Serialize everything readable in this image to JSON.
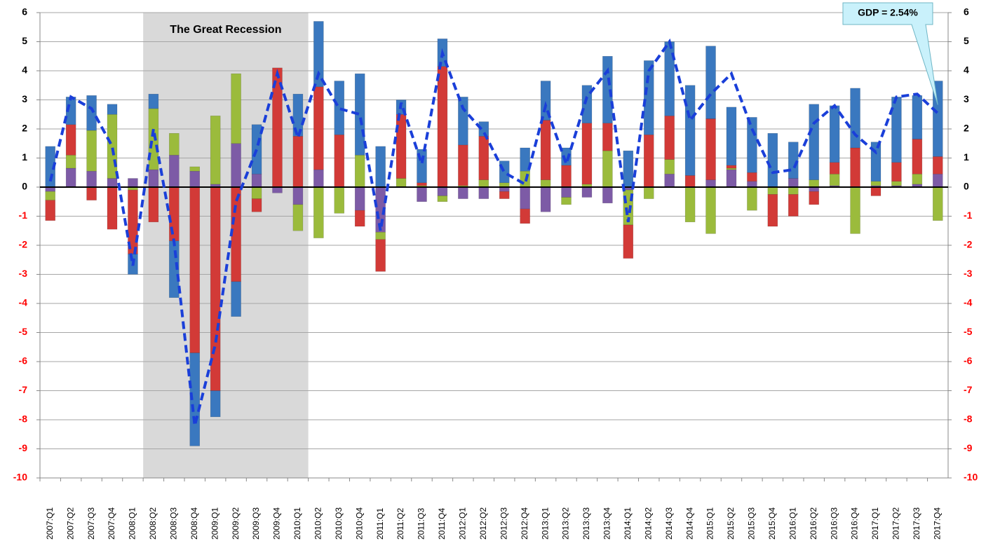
{
  "chart_data": {
    "type": "stacked-bar-line",
    "categories": [
      "2007:Q1",
      "2007:Q2",
      "2007:Q3",
      "2007:Q4",
      "2008:Q1",
      "2008:Q2",
      "2008:Q3",
      "2008:Q4",
      "2009:Q1",
      "2009:Q2",
      "2009:Q3",
      "2009:Q4",
      "2010:Q1",
      "2010:Q2",
      "2010:Q3",
      "2010:Q4",
      "2011:Q1",
      "2011:Q2",
      "2011:Q3",
      "2011:Q4",
      "2012:Q1",
      "2012:Q2",
      "2012:Q3",
      "2012:Q4",
      "2013:Q1",
      "2013:Q2",
      "2013:Q3",
      "2013:Q4",
      "2014:Q1",
      "2014:Q2",
      "2014:Q3",
      "2014:Q4",
      "2015:Q1",
      "2015:Q2",
      "2015:Q3",
      "2015:Q4",
      "2016:Q1",
      "2016:Q2",
      "2016:Q3",
      "2016:Q4",
      "2017:Q1",
      "2017:Q2",
      "2017:Q3",
      "2017:Q4"
    ],
    "series": [
      {
        "color": "#7d5ba6",
        "values": [
          -0.15,
          0.65,
          0.55,
          0.3,
          0.3,
          0.6,
          1.1,
          0.55,
          0.1,
          1.5,
          0.45,
          -0.2,
          -0.6,
          0.6,
          0,
          -0.8,
          -1.55,
          0,
          -0.5,
          -0.3,
          -0.4,
          -0.4,
          -0.15,
          -0.75,
          -0.85,
          -0.35,
          -0.35,
          -0.55,
          -0.1,
          0,
          0.45,
          0,
          0.25,
          0.6,
          0.2,
          0,
          0.3,
          -0.15,
          0.05,
          0,
          0.05,
          0.05,
          0.1,
          0.45
        ]
      },
      {
        "color": "#9bbb3c",
        "values": [
          -0.3,
          0.45,
          1.4,
          2.2,
          -0.1,
          2.1,
          0.75,
          0.15,
          2.35,
          2.4,
          -0.4,
          0,
          -0.9,
          -1.75,
          -0.9,
          1.1,
          -0.25,
          0.3,
          0.05,
          -0.2,
          0.05,
          0.25,
          0.15,
          0.55,
          0.25,
          -0.25,
          0.1,
          1.25,
          -1.2,
          -0.4,
          0.5,
          -1.2,
          -1.6,
          0.05,
          -0.8,
          -0.25,
          -0.25,
          0.25,
          0.4,
          -1.6,
          0.15,
          0.15,
          0.35,
          -1.15
        ]
      },
      {
        "color": "#d23a37",
        "values": [
          -0.7,
          1.05,
          -0.45,
          -1.45,
          -2.2,
          -1.2,
          -1.85,
          -5.7,
          -7.0,
          -3.25,
          -0.45,
          4.1,
          1.75,
          2.85,
          1.8,
          -0.55,
          -1.1,
          2.2,
          0.1,
          4.15,
          1.4,
          1.5,
          -0.25,
          -0.5,
          2.05,
          0.75,
          2.1,
          0.95,
          -1.15,
          1.8,
          1.5,
          0.4,
          2.1,
          0.1,
          0.3,
          -1.1,
          -0.75,
          -0.45,
          0.4,
          1.35,
          -0.3,
          0.65,
          1.2,
          0.6
        ]
      },
      {
        "color": "#3a78bf",
        "values": [
          1.4,
          0.95,
          1.2,
          0.35,
          -0.7,
          0.5,
          -1.95,
          -3.2,
          -0.9,
          -1.2,
          1.7,
          0,
          1.45,
          2.25,
          1.85,
          2.8,
          1.4,
          0.5,
          1.15,
          0.95,
          1.65,
          0.5,
          0.75,
          0.8,
          1.35,
          0.6,
          1.3,
          2.3,
          1.25,
          2.55,
          2.55,
          3.1,
          2.5,
          2.0,
          1.9,
          1.85,
          1.25,
          2.6,
          1.95,
          2.05,
          1.35,
          2.25,
          1.5,
          2.6
        ]
      }
    ],
    "gdp_line": {
      "color": "#1a3fd9",
      "values": [
        0.2,
        3.1,
        2.7,
        1.4,
        -2.7,
        2.0,
        -1.9,
        -8.2,
        -5.4,
        -0.5,
        1.3,
        3.9,
        1.7,
        3.9,
        2.7,
        2.5,
        -1.5,
        2.9,
        0.8,
        4.6,
        2.7,
        1.9,
        0.5,
        0.1,
        2.8,
        0.8,
        3.1,
        4.0,
        -1.2,
        4.0,
        5.0,
        2.3,
        3.2,
        3.9,
        2.0,
        0.5,
        0.6,
        2.2,
        2.8,
        1.8,
        1.2,
        3.1,
        3.2,
        2.54
      ]
    },
    "annotations": [
      {
        "text": "The Great Recession",
        "from": "2008:Q2",
        "to": "2010:Q1",
        "shade": "#d9d9d9"
      },
      {
        "text": "GDP = 2.54%",
        "at": "2017:Q4",
        "fill": "#c9f1fb"
      }
    ],
    "ylim": [
      -10,
      6
    ],
    "yticks": [
      -10,
      -9,
      -8,
      -7,
      -6,
      -5,
      -4,
      -3,
      -2,
      -1,
      0,
      1,
      2,
      3,
      4,
      5,
      6
    ],
    "y2lim": [
      -10,
      6
    ],
    "y2ticks": [
      -10,
      -9,
      -8,
      -7,
      -6,
      -5,
      -4,
      -3,
      -2,
      -1,
      0,
      1,
      2,
      3,
      4,
      5,
      6
    ],
    "grid": true,
    "negative_tick_color": "#ff0000"
  }
}
